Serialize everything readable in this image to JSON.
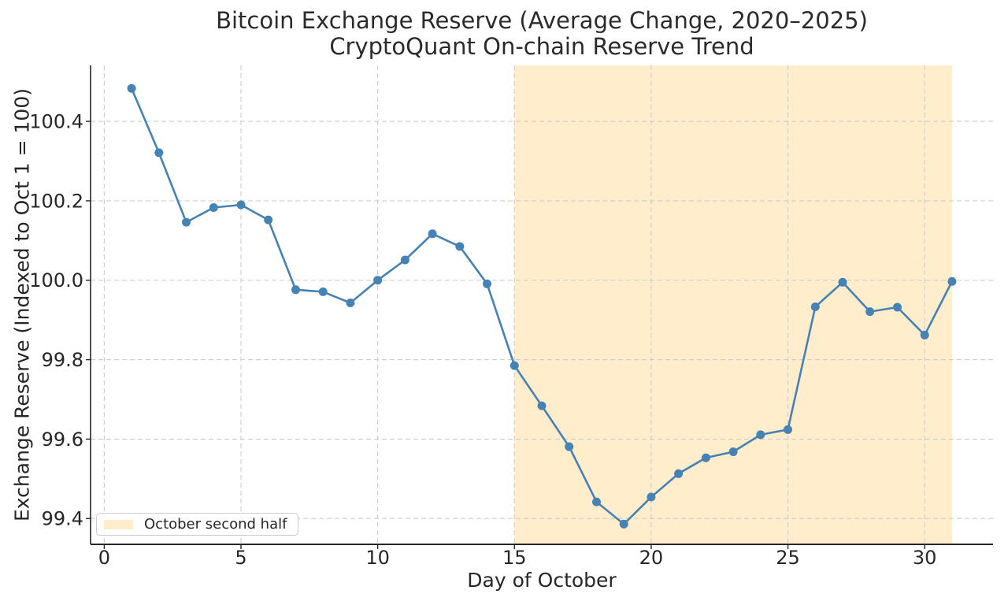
{
  "chart_data": {
    "type": "line",
    "title": "Bitcoin Exchange Reserve (Average Change, 2020–2025)",
    "subtitle": "CryptoQuant On-chain Reserve Trend",
    "xlabel": "Day of October",
    "ylabel": "Exchange Reserve (Indexed to Oct 1 = 100)",
    "x": [
      1,
      2,
      3,
      4,
      5,
      6,
      7,
      8,
      9,
      10,
      11,
      12,
      13,
      14,
      15,
      16,
      17,
      18,
      19,
      20,
      21,
      22,
      23,
      24,
      25,
      26,
      27,
      28,
      29,
      30,
      31
    ],
    "series": [
      {
        "name": "Exchange Reserve (Indexed)",
        "values": [
          100.483,
          100.321,
          100.146,
          100.183,
          100.19,
          100.152,
          99.976,
          99.971,
          99.943,
          100.0,
          100.051,
          100.117,
          100.085,
          99.991,
          99.785,
          99.684,
          99.581,
          99.442,
          99.386,
          99.454,
          99.513,
          99.553,
          99.568,
          99.611,
          99.624,
          99.933,
          99.995,
          99.921,
          99.932,
          99.862,
          99.997
        ]
      }
    ],
    "xlim": [
      -0.5,
      32.5
    ],
    "ylim": [
      99.335,
      100.541
    ],
    "xticks": [
      0,
      5,
      10,
      15,
      20,
      25,
      30
    ],
    "yticks": [
      99.4,
      99.6,
      99.8,
      100.0,
      100.2,
      100.4
    ],
    "grid": true,
    "grid_style": "dashed",
    "shaded_region": {
      "x_from": 15,
      "x_to": 31,
      "label": "October second half"
    },
    "legend": {
      "position": "lower left",
      "entries": [
        {
          "label": "October second half",
          "type": "patch",
          "swatch_color": "#ffedcc"
        }
      ]
    },
    "colors": {
      "line": "#4682b4",
      "marker": "#4682b4",
      "shade": "rgba(255,165,0,0.2)",
      "grid": "#cccccc",
      "spine": "#262626",
      "text": "#262626"
    }
  }
}
